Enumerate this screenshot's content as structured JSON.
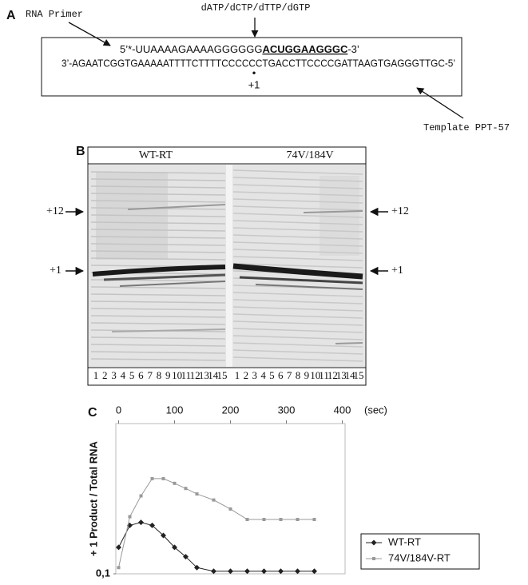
{
  "panel_a": {
    "label": "A",
    "primer_label": "RNA Primer",
    "nucleotides": "dATP/dCTP/dTTP/dGTP",
    "primer_strand": {
      "prefix": "5’*-UUAAAAGAAAAGGGGGG",
      "highlight": "ACUGGAAGGGC",
      "suffix": "-3’"
    },
    "template_strand": "3’-AGAATCGGTGAAAAATTTTCTTTTCCCCCCTGACCTTCCCCGATTAAGTGAGGGTTGC-5’",
    "dot": "•",
    "position": "+1",
    "template_label": "Template PPT-57"
  },
  "panel_b": {
    "label": "B",
    "groups": [
      "WT-RT",
      "74V/184V"
    ],
    "markers_left": [
      "+12",
      "+1"
    ],
    "markers_right": [
      "+12",
      "+1"
    ],
    "lanes_left": [
      1,
      2,
      3,
      4,
      5,
      6,
      7,
      8,
      9,
      10,
      11,
      12,
      13,
      14,
      15
    ],
    "lanes_right": [
      1,
      2,
      3,
      4,
      5,
      6,
      7,
      8,
      9,
      10,
      11,
      12,
      13,
      14,
      15
    ]
  },
  "panel_c": {
    "label": "C",
    "chart_data": {
      "type": "line",
      "ylabel": "+ 1 Product / Total RNA",
      "xlabel": "(sec)",
      "x": [
        0,
        20,
        40,
        60,
        80,
        100,
        120,
        140,
        170,
        200,
        230,
        260,
        290,
        320,
        350
      ],
      "series": [
        {
          "name": "WT-RT",
          "color": "#222222",
          "marker": "diamond",
          "values": [
            0.15,
            0.21,
            0.22,
            0.21,
            0.18,
            0.15,
            0.13,
            0.11,
            0.104,
            0.104,
            0.104,
            0.104,
            0.104,
            0.104,
            0.104
          ]
        },
        {
          "name": "74V/184V-RT",
          "color": "#999999",
          "marker": "square",
          "values": [
            0.11,
            0.24,
            0.33,
            0.43,
            0.43,
            0.4,
            0.37,
            0.34,
            0.31,
            0.27,
            0.23,
            0.23,
            0.23,
            0.23,
            0.23
          ]
        }
      ],
      "xlim": [
        -5,
        405
      ],
      "xticks": [
        0,
        100,
        200,
        300,
        400
      ],
      "ylim": [
        0.1,
        1
      ],
      "yticks": [
        {
          "value": 0.1,
          "label": "0,1"
        }
      ],
      "ylog": true,
      "legend": "right"
    }
  }
}
